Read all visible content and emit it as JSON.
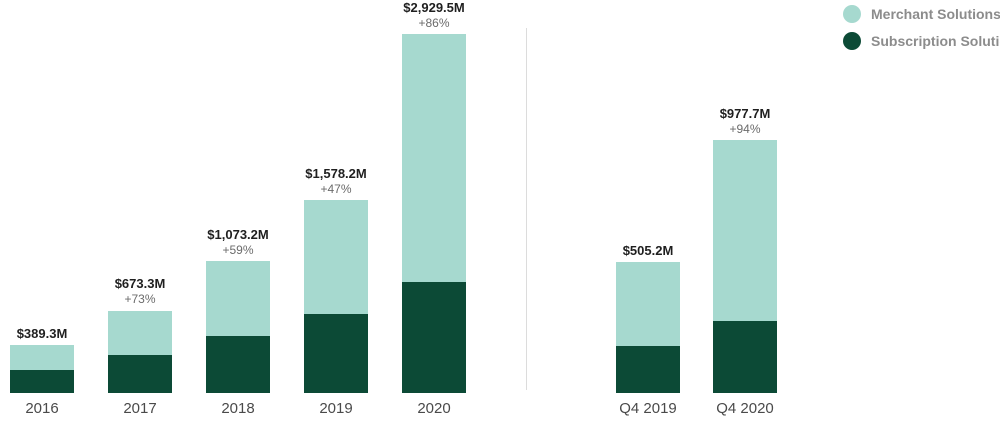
{
  "legend": {
    "items": [
      {
        "label": "Merchant Solutions",
        "color": "#a6d9cf"
      },
      {
        "label": "Subscription Solutions",
        "color": "#0c4a36"
      }
    ]
  },
  "chart_data": {
    "type": "bar",
    "stacked": true,
    "unit": "USD millions",
    "legend_position": "top-right",
    "grid": false,
    "colors": {
      "Merchant Solutions": "#a6d9cf",
      "Subscription Solutions": "#0c4a36"
    },
    "groups": [
      {
        "name": "annual-revenue",
        "categories": [
          "2016",
          "2017",
          "2018",
          "2019",
          "2020"
        ],
        "series": [
          {
            "name": "Subscription Solutions",
            "values": [
              188.6,
              310.0,
              465.0,
              642.2,
              908.8
            ]
          },
          {
            "name": "Merchant Solutions",
            "values": [
              200.7,
              363.3,
              608.2,
              936.0,
              2020.7
            ]
          }
        ],
        "totals": [
          389.3,
          673.3,
          1073.2,
          1578.2,
          2929.5
        ],
        "total_labels": [
          "$389.3M",
          "$673.3M",
          "$1,073.2M",
          "$1,578.2M",
          "$2,929.5M"
        ],
        "growth_labels": [
          "",
          "+73%",
          "+59%",
          "+47%",
          "+86%"
        ]
      },
      {
        "name": "q4-revenue",
        "categories": [
          "Q4 2019",
          "Q4 2020"
        ],
        "series": [
          {
            "name": "Subscription Solutions",
            "values": [
              183.2,
              279.4
            ]
          },
          {
            "name": "Merchant Solutions",
            "values": [
              322.0,
              698.3
            ]
          }
        ],
        "totals": [
          505.2,
          977.7
        ],
        "total_labels": [
          "$505.2M",
          "$977.7M"
        ],
        "growth_labels": [
          "",
          "+94%"
        ]
      }
    ]
  }
}
